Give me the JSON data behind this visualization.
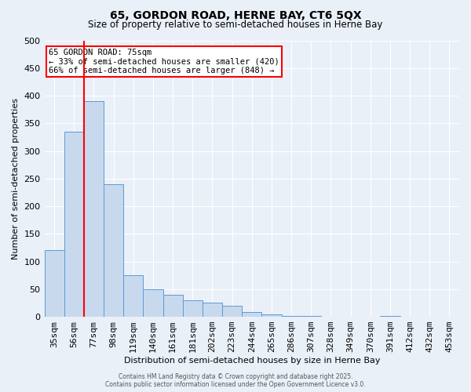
{
  "title1": "65, GORDON ROAD, HERNE BAY, CT6 5QX",
  "title2": "Size of property relative to semi-detached houses in Herne Bay",
  "xlabel": "Distribution of semi-detached houses by size in Herne Bay",
  "ylabel": "Number of semi-detached properties",
  "bar_labels": [
    "35sqm",
    "56sqm",
    "77sqm",
    "98sqm",
    "119sqm",
    "140sqm",
    "161sqm",
    "181sqm",
    "202sqm",
    "223sqm",
    "244sqm",
    "265sqm",
    "286sqm",
    "307sqm",
    "328sqm",
    "349sqm",
    "370sqm",
    "391sqm",
    "412sqm",
    "432sqm",
    "453sqm"
  ],
  "bar_values": [
    120,
    335,
    390,
    240,
    75,
    50,
    40,
    30,
    25,
    20,
    8,
    5,
    1,
    1,
    0,
    0,
    0,
    1,
    0,
    0,
    0
  ],
  "bar_color": "#c8d9ee",
  "bar_edge_color": "#5b9bd5",
  "vline_color": "red",
  "vline_x_index": 2,
  "annotation_title": "65 GORDON ROAD: 75sqm",
  "annotation_line1": "← 33% of semi-detached houses are smaller (420)",
  "annotation_line2": "66% of semi-detached houses are larger (848) →",
  "annotation_box_color": "white",
  "annotation_box_edge": "red",
  "ylim": [
    0,
    500
  ],
  "yticks": [
    0,
    50,
    100,
    150,
    200,
    250,
    300,
    350,
    400,
    450,
    500
  ],
  "footer1": "Contains HM Land Registry data © Crown copyright and database right 2025.",
  "footer2": "Contains public sector information licensed under the Open Government Licence v3.0.",
  "bg_color": "#eaf0f8",
  "grid_color": "#ffffff"
}
